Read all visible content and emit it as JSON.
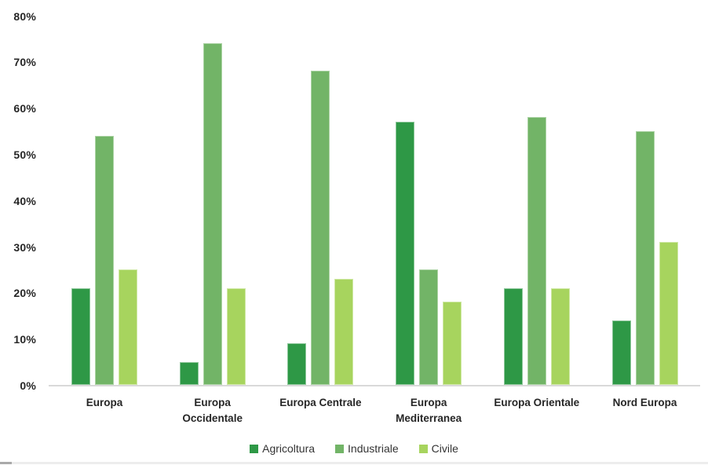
{
  "chart_data": {
    "type": "bar",
    "title": "",
    "xlabel": "",
    "ylabel": "",
    "ylim": [
      0,
      80
    ],
    "y_ticks": [
      "0%",
      "10%",
      "20%",
      "30%",
      "40%",
      "50%",
      "60%",
      "70%",
      "80%"
    ],
    "grid": false,
    "legend_position": "bottom",
    "background_color": "#ffffff",
    "axis_line_color": "#d9d9d9",
    "text_color": "#262626",
    "categories": [
      "Europa",
      "Europa Occidentale",
      "Europa Centrale",
      "Europa Mediterranea",
      "Europa Orientale",
      "Nord Europa"
    ],
    "category_label_lines": [
      [
        "Europa"
      ],
      [
        "Europa",
        "Occidentale"
      ],
      [
        "Europa Centrale"
      ],
      [
        "Europa",
        "Mediterranea"
      ],
      [
        "Europa Orientale"
      ],
      [
        "Nord Europa"
      ]
    ],
    "series": [
      {
        "name": "Agricoltura",
        "color": "#2E9846",
        "edge_color": "#8CC699",
        "values": [
          21,
          5,
          9,
          57,
          21,
          14
        ]
      },
      {
        "name": "Industriale",
        "color": "#72B467",
        "edge_color": "#ABD3A4",
        "values": [
          54,
          74,
          68,
          25,
          58,
          55
        ]
      },
      {
        "name": "Civile",
        "color": "#A7D45E",
        "edge_color": "#CFE8A5",
        "values": [
          25,
          21,
          23,
          18,
          21,
          31
        ]
      }
    ]
  }
}
